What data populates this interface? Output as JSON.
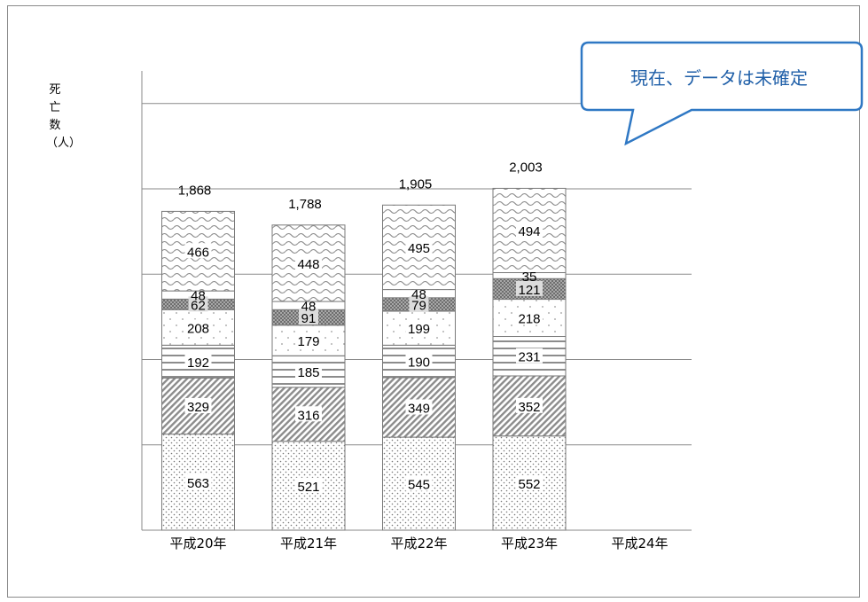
{
  "chart_data": {
    "type": "bar",
    "stacked": true,
    "title": "",
    "xlabel": "",
    "ylabel": "死亡数（人）",
    "categories": [
      "平成20年",
      "平成21年",
      "平成22年",
      "平成23年",
      "平成24年"
    ],
    "totals": [
      "1,868",
      "1,788",
      "1,905",
      "2,003",
      null
    ],
    "segments": [
      {
        "values": [
          563,
          521,
          545,
          552,
          null
        ],
        "pattern": "dots"
      },
      {
        "values": [
          329,
          316,
          349,
          352,
          null
        ],
        "pattern": "diagonal"
      },
      {
        "values": [
          192,
          185,
          190,
          231,
          null
        ],
        "pattern": "horizontal"
      },
      {
        "values": [
          208,
          179,
          199,
          218,
          null
        ],
        "pattern": "sparse-dots"
      },
      {
        "values": [
          62,
          91,
          79,
          121,
          null
        ],
        "pattern": "dark-dots"
      },
      {
        "values": [
          48,
          48,
          48,
          35,
          null
        ],
        "pattern": "plain"
      },
      {
        "values": [
          466,
          448,
          495,
          494,
          null
        ],
        "pattern": "wave"
      }
    ],
    "ylim": [
      0,
      2100
    ],
    "grid": true,
    "legend": "none"
  },
  "callout": {
    "text": "現在、データは未確定",
    "color": "#1f5fa8"
  }
}
